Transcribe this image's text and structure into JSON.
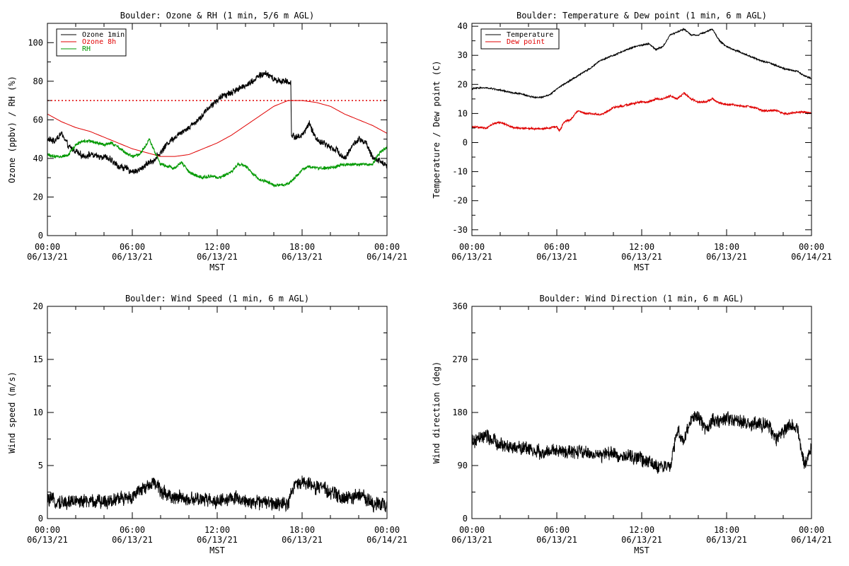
{
  "chart_data": [
    {
      "type": "line",
      "title": "Boulder: Ozone & RH (1 min, 5/6 m AGL)",
      "ylabel": "Ozone (ppbv) / RH (%)",
      "xlabel": "MST",
      "xlim": [
        0,
        24
      ],
      "ylim": [
        0,
        110
      ],
      "yticks": [
        0,
        20,
        40,
        60,
        80,
        100
      ],
      "xtick_labels": [
        {
          "time": "00:00",
          "date": "06/13/21"
        },
        {
          "time": "06:00",
          "date": "06/13/21"
        },
        {
          "time": "12:00",
          "date": "06/13/21"
        },
        {
          "time": "18:00",
          "date": "06/13/21"
        },
        {
          "time": "00:00",
          "date": "06/14/21"
        }
      ],
      "legend": "top-left",
      "reference_line": {
        "y": 70,
        "color": "#e00000",
        "style": "dotted"
      },
      "series": [
        {
          "name": "Ozone 1min",
          "color": "#000000",
          "noise": 2,
          "x": [
            0,
            0.5,
            1,
            1.5,
            2,
            2.5,
            3,
            3.5,
            4,
            4.5,
            5,
            5.5,
            6,
            6.5,
            7,
            7.5,
            8,
            8.5,
            9,
            9.5,
            10,
            10.5,
            11,
            11.5,
            12,
            12.5,
            13,
            13.5,
            14,
            14.5,
            15,
            15.5,
            16,
            16.5,
            17,
            17.2,
            17.25,
            17.5,
            18,
            18.5,
            19,
            19.5,
            20,
            20.5,
            21,
            21.5,
            22,
            22.5,
            23,
            23.5,
            24
          ],
          "y": [
            50,
            49,
            53,
            46,
            44,
            41,
            42,
            41,
            41,
            39,
            36,
            35,
            33,
            34,
            37,
            39,
            43,
            48,
            51,
            54,
            56,
            59,
            63,
            67,
            70,
            73,
            74,
            76,
            78,
            80,
            83,
            84,
            81,
            80,
            80,
            79,
            52,
            51,
            52,
            58,
            50,
            48,
            46,
            44,
            40,
            46,
            50,
            48,
            40,
            39,
            36
          ]
        },
        {
          "name": "Ozone 8h",
          "color": "#e00000",
          "noise": 0,
          "x": [
            0,
            1,
            2,
            3,
            4,
            5,
            6,
            7,
            8,
            9,
            10,
            11,
            12,
            13,
            14,
            15,
            16,
            17,
            18,
            19,
            20,
            21,
            22,
            23,
            24
          ],
          "y": [
            63,
            59,
            56,
            54,
            51,
            48,
            45,
            43,
            41,
            41,
            42,
            45,
            48,
            52,
            57,
            62,
            67,
            70,
            70,
            69,
            67,
            63,
            60,
            57,
            53
          ]
        },
        {
          "name": "RH",
          "color": "#009900",
          "noise": 1,
          "x": [
            0,
            0.5,
            1,
            1.5,
            2,
            2.5,
            3,
            3.5,
            4,
            4.5,
            5,
            5.5,
            6,
            6.5,
            7,
            7.2,
            7.5,
            7.8,
            8,
            8.5,
            9,
            9.5,
            10,
            10.5,
            11,
            11.5,
            12,
            12.5,
            13,
            13.5,
            14,
            14.5,
            15,
            15.5,
            16,
            16.5,
            17,
            17.5,
            18,
            18.5,
            19,
            19.5,
            20,
            20.5,
            21,
            21.5,
            22,
            22.5,
            23,
            23.5,
            24
          ],
          "y": [
            42,
            41,
            41,
            42,
            47,
            49,
            49,
            48,
            47,
            48,
            46,
            43,
            41,
            42,
            47,
            50,
            45,
            40,
            37,
            36,
            35,
            38,
            33,
            31,
            30,
            31,
            30,
            31,
            33,
            37,
            36,
            32,
            29,
            28,
            26,
            26,
            27,
            30,
            34,
            36,
            35,
            35,
            35,
            36,
            37,
            37,
            37,
            37,
            37,
            43,
            46
          ]
        }
      ]
    },
    {
      "type": "line",
      "title": "Boulder: Temperature & Dew point (1 min, 6 m AGL)",
      "ylabel": "Temperature / Dew point (C)",
      "xlabel": "MST",
      "xlim": [
        0,
        24
      ],
      "ylim": [
        -32,
        41
      ],
      "yticks": [
        -30,
        -20,
        -10,
        0,
        10,
        20,
        30,
        40
      ],
      "xtick_labels": [
        {
          "time": "00:00",
          "date": "06/13/21"
        },
        {
          "time": "06:00",
          "date": "06/13/21"
        },
        {
          "time": "12:00",
          "date": "06/13/21"
        },
        {
          "time": "18:00",
          "date": "06/13/21"
        },
        {
          "time": "00:00",
          "date": "06/14/21"
        }
      ],
      "legend": "top-left",
      "series": [
        {
          "name": "Temperature",
          "color": "#000000",
          "noise": 0.3,
          "x": [
            0,
            0.5,
            1,
            1.5,
            2,
            2.5,
            3,
            3.5,
            4,
            4.5,
            5,
            5.5,
            6,
            6.5,
            7,
            7.5,
            8,
            8.5,
            9,
            9.5,
            10,
            10.5,
            11,
            11.5,
            12,
            12.5,
            13,
            13.5,
            14,
            14.5,
            15,
            15.5,
            16,
            16.5,
            17,
            17.5,
            18,
            18.5,
            19,
            19.5,
            20,
            20.5,
            21,
            21.5,
            22,
            22.5,
            23,
            23.5,
            24
          ],
          "y": [
            18.5,
            18.8,
            18.8,
            18.5,
            18,
            17.5,
            17,
            16.7,
            16,
            15.5,
            15.6,
            16.5,
            18.5,
            20,
            21.5,
            23,
            24.5,
            26,
            28,
            29,
            30,
            31,
            32,
            33,
            33.5,
            34,
            32,
            33,
            37,
            38,
            39,
            37,
            37,
            38,
            39,
            35,
            33,
            32,
            31,
            30,
            29,
            28,
            27.5,
            26.5,
            25.5,
            25,
            24.5,
            23,
            22
          ]
        },
        {
          "name": "Dew point",
          "color": "#e00000",
          "noise": 0.4,
          "x": [
            0,
            0.5,
            1,
            1.5,
            2,
            2.5,
            3,
            3.5,
            4,
            4.5,
            5,
            5.5,
            6,
            6.2,
            6.5,
            7,
            7.5,
            8,
            8.5,
            9,
            9.5,
            10,
            10.5,
            11,
            11.5,
            12,
            12.5,
            13,
            13.5,
            14,
            14.5,
            15,
            15.5,
            16,
            16.5,
            17,
            17.5,
            18,
            18.5,
            19,
            19.5,
            20,
            20.5,
            21,
            21.5,
            22,
            22.5,
            23,
            23.5,
            24
          ],
          "y": [
            5.5,
            5.2,
            5,
            6.5,
            7,
            6,
            5,
            5,
            4.8,
            4.8,
            4.8,
            5,
            5.5,
            4,
            7,
            8,
            11,
            10,
            10,
            9.5,
            10.5,
            12,
            12.5,
            13,
            13.5,
            14,
            14,
            15,
            15,
            16,
            15,
            17,
            15,
            14,
            14,
            15,
            13.5,
            13,
            13,
            12.5,
            12.5,
            12,
            11,
            11,
            11,
            10,
            10,
            10.5,
            10.5,
            10
          ]
        }
      ]
    },
    {
      "type": "line",
      "title": "Boulder: Wind Speed (1 min, 6 m AGL)",
      "ylabel": "Wind speed (m/s)",
      "xlabel": "MST",
      "xlim": [
        0,
        24
      ],
      "ylim": [
        0,
        20
      ],
      "yticks": [
        0,
        5,
        10,
        15,
        20
      ],
      "xtick_labels": [
        {
          "time": "00:00",
          "date": "06/13/21"
        },
        {
          "time": "06:00",
          "date": "06/13/21"
        },
        {
          "time": "12:00",
          "date": "06/13/21"
        },
        {
          "time": "18:00",
          "date": "06/13/21"
        },
        {
          "time": "00:00",
          "date": "06/14/21"
        }
      ],
      "series": [
        {
          "name": "Wind speed",
          "color": "#000000",
          "noise": 0.8,
          "min": 0,
          "x": [
            0,
            1,
            2,
            3,
            4,
            5,
            6,
            7,
            7.5,
            8,
            9,
            10,
            11,
            12,
            13,
            14,
            15,
            16,
            17,
            17.5,
            18,
            19,
            20,
            21,
            22,
            23,
            24
          ],
          "y": [
            1.8,
            1.5,
            1.7,
            1.6,
            1.6,
            1.9,
            2,
            3,
            3.5,
            2.6,
            2,
            1.8,
            1.8,
            1.7,
            1.9,
            1.7,
            1.5,
            1.5,
            1.5,
            3.2,
            3.5,
            3,
            2.5,
            1.8,
            2.2,
            1.5,
            1.3
          ]
        }
      ]
    },
    {
      "type": "line",
      "title": "Boulder: Wind Direction (1 min, 6 m AGL)",
      "ylabel": "Wind direction (deg)",
      "xlabel": "MST",
      "xlim": [
        0,
        24
      ],
      "ylim": [
        0,
        360
      ],
      "yticks": [
        0,
        90,
        180,
        270,
        360
      ],
      "xtick_labels": [
        {
          "time": "00:00",
          "date": "06/13/21"
        },
        {
          "time": "06:00",
          "date": "06/13/21"
        },
        {
          "time": "12:00",
          "date": "06/13/21"
        },
        {
          "time": "18:00",
          "date": "06/13/21"
        },
        {
          "time": "00:00",
          "date": "06/14/21"
        }
      ],
      "series": [
        {
          "name": "Wind direction",
          "color": "#000000",
          "noise": 14,
          "min": 0,
          "x": [
            0,
            1,
            2,
            3,
            4,
            5,
            6,
            7,
            8,
            9,
            10,
            11,
            12,
            13,
            14,
            14.5,
            15,
            15.5,
            16,
            16.5,
            17,
            18,
            19,
            20,
            21,
            21.5,
            22,
            22.5,
            23,
            23.5,
            24
          ],
          "y": [
            130,
            140,
            125,
            120,
            120,
            110,
            115,
            112,
            112,
            108,
            110,
            105,
            102,
            90,
            85,
            150,
            130,
            170,
            175,
            150,
            165,
            170,
            165,
            160,
            158,
            130,
            150,
            160,
            150,
            90,
            120
          ]
        }
      ]
    }
  ]
}
